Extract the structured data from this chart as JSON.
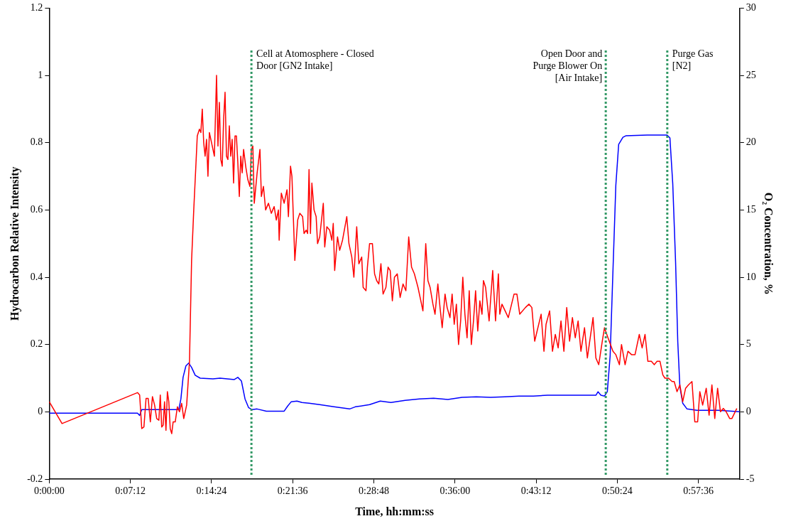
{
  "chart_data": {
    "type": "line",
    "xlabel": "Time, hh:mm:ss",
    "ylabel": "Hydrocarbon Relative Intensity",
    "y2label": "O₂ Concentration, %",
    "xlim": [
      0,
      1.0211
    ],
    "xticks": [
      {
        "value": 0,
        "label": "0:00:00"
      },
      {
        "value": 0.12,
        "label": "0:07:12"
      },
      {
        "value": 0.24,
        "label": "0:14:24"
      },
      {
        "value": 0.36,
        "label": "0:21:36"
      },
      {
        "value": 0.48,
        "label": "0:28:48"
      },
      {
        "value": 0.6,
        "label": "0:36:00"
      },
      {
        "value": 0.72,
        "label": "0:43:12"
      },
      {
        "value": 0.84,
        "label": "0:50:24"
      },
      {
        "value": 0.96,
        "label": "0:57:36"
      }
    ],
    "ylim": [
      -0.2,
      1.2
    ],
    "yticks": [
      -0.2,
      0,
      0.2,
      0.4,
      0.6,
      0.8,
      1,
      1.2
    ],
    "y2lim": [
      -5,
      30
    ],
    "y2ticks": [
      -5,
      0,
      5,
      10,
      15,
      20,
      25,
      30
    ],
    "grid": false,
    "legend": false,
    "marker": "none",
    "line_style": "solid",
    "ref_lines": [
      {
        "axis": "x",
        "value": 0.299,
        "label": "Cell at Atomosphere - Closed\nDoor [GN2 Intake]",
        "color": "#339966",
        "line_style": "dotted"
      },
      {
        "axis": "x",
        "value": 0.823,
        "label": "Open Door and\nPurge Blower On\n[Air Intake]",
        "color": "#339966",
        "line_style": "dotted"
      },
      {
        "axis": "x",
        "value": 0.914,
        "label": "Purge Gas\n[N2]",
        "color": "#339966",
        "line_style": "dotted"
      }
    ],
    "series": [
      {
        "color": "#ff0000",
        "x": [
          0,
          0.0189,
          0.1305,
          0.1337,
          0.1368,
          0.14,
          0.1432,
          0.1463,
          0.1495,
          0.1526,
          0.1558,
          0.1589,
          0.1621,
          0.1642,
          0.1663,
          0.1684,
          0.1705,
          0.1726,
          0.1747,
          0.1768,
          0.1789,
          0.1811,
          0.1832,
          0.1863,
          0.1895,
          0.1926,
          0.1958,
          0.1989,
          0.2032,
          0.2074,
          0.2105,
          0.2137,
          0.2168,
          0.2189,
          0.2221,
          0.2242,
          0.2263,
          0.2284,
          0.2305,
          0.2326,
          0.2347,
          0.2368,
          0.24,
          0.2442,
          0.2474,
          0.2495,
          0.2516,
          0.2537,
          0.2558,
          0.2579,
          0.26,
          0.2621,
          0.2642,
          0.2663,
          0.2684,
          0.2705,
          0.2726,
          0.2747,
          0.2768,
          0.2789,
          0.2811,
          0.2832,
          0.2853,
          0.2874,
          0.2905,
          0.2937,
          0.2968,
          0.2989,
          0.3011,
          0.3032,
          0.3074,
          0.3116,
          0.3137,
          0.3168,
          0.32,
          0.3242,
          0.3284,
          0.3326,
          0.3358,
          0.3389,
          0.34,
          0.3432,
          0.3474,
          0.3516,
          0.3537,
          0.3568,
          0.3589,
          0.3632,
          0.3674,
          0.3705,
          0.3747,
          0.3768,
          0.38,
          0.3821,
          0.3842,
          0.3863,
          0.3884,
          0.3916,
          0.3947,
          0.3968,
          0.4,
          0.4053,
          0.4074,
          0.4105,
          0.4147,
          0.4179,
          0.42,
          0.4221,
          0.4263,
          0.4295,
          0.4337,
          0.44,
          0.4432,
          0.4474,
          0.4505,
          0.4547,
          0.4579,
          0.4621,
          0.4642,
          0.4684,
          0.4705,
          0.4737,
          0.4779,
          0.4811,
          0.4842,
          0.4874,
          0.4905,
          0.4937,
          0.4979,
          0.5011,
          0.5042,
          0.5074,
          0.5105,
          0.5147,
          0.5189,
          0.5232,
          0.5274,
          0.5316,
          0.5358,
          0.54,
          0.5453,
          0.5495,
          0.5526,
          0.5568,
          0.56,
          0.5632,
          0.5674,
          0.5705,
          0.5747,
          0.5779,
          0.5811,
          0.5853,
          0.5884,
          0.5926,
          0.5958,
          0.5989,
          0.6021,
          0.6053,
          0.6084,
          0.6116,
          0.6147,
          0.6179,
          0.6211,
          0.6242,
          0.6274,
          0.6305,
          0.6337,
          0.6368,
          0.64,
          0.6421,
          0.6453,
          0.6505,
          0.6558,
          0.66,
          0.6642,
          0.6663,
          0.6695,
          0.6789,
          0.6874,
          0.6916,
          0.6958,
          0.7042,
          0.7095,
          0.7137,
          0.7179,
          0.7274,
          0.7316,
          0.7347,
          0.74,
          0.7442,
          0.7484,
          0.7526,
          0.7568,
          0.7611,
          0.7653,
          0.7695,
          0.7737,
          0.7779,
          0.7821,
          0.7863,
          0.7916,
          0.7958,
          0.8042,
          0.8084,
          0.8126,
          0.8179,
          0.8211,
          0.8263,
          0.8337,
          0.8379,
          0.8432,
          0.8463,
          0.8516,
          0.8558,
          0.8611,
          0.8663,
          0.8726,
          0.8768,
          0.8811,
          0.8853,
          0.8905,
          0.8947,
          0.8989,
          0.9032,
          0.9074,
          0.9105,
          0.9158,
          0.9211,
          0.9242,
          0.9284,
          0.9326,
          0.9368,
          0.9411,
          0.9453,
          0.9505,
          0.9547,
          0.9589,
          0.9621,
          0.9663,
          0.9716,
          0.9758,
          0.98,
          0.9842,
          0.9884,
          0.9926,
          0.9968,
          1.0011,
          1.0063,
          1.0095,
          1.0168
        ],
        "values": [
          0.03,
          -0.035,
          0.057,
          0.05,
          -0.05,
          -0.045,
          0.04,
          0.04,
          -0.03,
          0.045,
          0.02,
          -0.02,
          -0.025,
          0.05,
          -0.045,
          -0.04,
          0.03,
          -0.055,
          0.06,
          0.03,
          -0.05,
          -0.065,
          -0.03,
          -0.03,
          0.015,
          0,
          0.025,
          -0.02,
          0.02,
          0.15,
          0.45,
          0.6,
          0.73,
          0.82,
          0.84,
          0.83,
          0.9,
          0.8,
          0.76,
          0.81,
          0.7,
          0.83,
          0.8,
          0.76,
          1,
          0.79,
          0.92,
          0.75,
          0.73,
          0.87,
          0.95,
          0.76,
          0.75,
          0.85,
          0.76,
          0.81,
          0.68,
          0.82,
          0.82,
          0.74,
          0.64,
          0.76,
          0.71,
          0.78,
          0.73,
          0.69,
          0.67,
          0.78,
          0.79,
          0.62,
          0.71,
          0.78,
          0.64,
          0.67,
          0.6,
          0.62,
          0.59,
          0.61,
          0.57,
          0.6,
          0.51,
          0.65,
          0.62,
          0.66,
          0.58,
          0.73,
          0.7,
          0.45,
          0.57,
          0.59,
          0.58,
          0.53,
          0.54,
          0.53,
          0.72,
          0.53,
          0.68,
          0.6,
          0.58,
          0.5,
          0.52,
          0.62,
          0.49,
          0.55,
          0.54,
          0.51,
          0.56,
          0.42,
          0.52,
          0.48,
          0.51,
          0.58,
          0.5,
          0.46,
          0.4,
          0.55,
          0.44,
          0.46,
          0.37,
          0.36,
          0.43,
          0.5,
          0.5,
          0.41,
          0.39,
          0.38,
          0.44,
          0.35,
          0.37,
          0.43,
          0.42,
          0.33,
          0.4,
          0.41,
          0.34,
          0.38,
          0.36,
          0.52,
          0.43,
          0.41,
          0.37,
          0.33,
          0.3,
          0.5,
          0.39,
          0.37,
          0.32,
          0.29,
          0.38,
          0.31,
          0.25,
          0.35,
          0.31,
          0.28,
          0.35,
          0.26,
          0.32,
          0.2,
          0.27,
          0.4,
          0.29,
          0.22,
          0.36,
          0.2,
          0.27,
          0.36,
          0.24,
          0.33,
          0.29,
          0.39,
          0.37,
          0.27,
          0.42,
          0.27,
          0.41,
          0.29,
          0.32,
          0.28,
          0.35,
          0.35,
          0.29,
          0.31,
          0.32,
          0.31,
          0.21,
          0.29,
          0.18,
          0.26,
          0.3,
          0.18,
          0.23,
          0.19,
          0.27,
          0.18,
          0.31,
          0.21,
          0.28,
          0.22,
          0.27,
          0.18,
          0.25,
          0.16,
          0.28,
          0.16,
          0.14,
          0.21,
          0.25,
          0.22,
          0.18,
          0.17,
          0.14,
          0.2,
          0.14,
          0.18,
          0.17,
          0.17,
          0.23,
          0.19,
          0.23,
          0.15,
          0.15,
          0.14,
          0.15,
          0.15,
          0.11,
          0.1,
          0.1,
          0.09,
          0.09,
          0.06,
          0.08,
          0.03,
          0.07,
          0.08,
          0.09,
          -0.03,
          -0.03,
          0.06,
          0.02,
          0.07,
          -0.01,
          0.08,
          -0.02,
          0.07,
          0,
          0.01,
          0,
          -0.02,
          -0.02,
          0.01
        ]
      },
      {
        "color": "#0000ff",
        "axis": "y2",
        "x": [
          0,
          0.1305,
          0.1337,
          0.1368,
          0.1916,
          0.1947,
          0.1979,
          0.2021,
          0.2063,
          0.2105,
          0.2158,
          0.2232,
          0.2421,
          0.2526,
          0.2737,
          0.2789,
          0.2842,
          0.2895,
          0.2947,
          0.3,
          0.3074,
          0.3211,
          0.3474,
          0.3526,
          0.3579,
          0.3663,
          0.3737,
          0.3842,
          0.4,
          0.4211,
          0.4442,
          0.4526,
          0.4737,
          0.4895,
          0.5053,
          0.5263,
          0.5474,
          0.5684,
          0.5895,
          0.6105,
          0.6316,
          0.6526,
          0.6737,
          0.6947,
          0.7158,
          0.7368,
          0.7579,
          0.8084,
          0.8116,
          0.8158,
          0.8211,
          0.8253,
          0.8295,
          0.8337,
          0.8379,
          0.8421,
          0.8484,
          0.8526,
          0.8842,
          0.9137,
          0.9179,
          0.9221,
          0.9263,
          0.9295,
          0.9326,
          0.9368,
          0.9432,
          0.9579,
          0.9895,
          1.0211
        ],
        "values": [
          -0.1,
          -0.1,
          -0.27,
          0.16,
          0.16,
          0.96,
          2.56,
          3.41,
          3.62,
          3.3,
          2.72,
          2.5,
          2.45,
          2.5,
          2.4,
          2.56,
          2.29,
          0.96,
          0.32,
          0.16,
          0.21,
          0.05,
          0.05,
          0.43,
          0.75,
          0.8,
          0.69,
          0.64,
          0.53,
          0.37,
          0.21,
          0.37,
          0.53,
          0.8,
          0.69,
          0.85,
          0.96,
          1.01,
          0.91,
          1.07,
          1.12,
          1.07,
          1.12,
          1.17,
          1.17,
          1.23,
          1.23,
          1.23,
          1.49,
          1.23,
          1.17,
          1.49,
          4.15,
          10.55,
          16.83,
          19.87,
          20.4,
          20.51,
          20.56,
          20.56,
          20.35,
          16.94,
          11.08,
          5.22,
          1.86,
          0.64,
          0.21,
          0.11,
          0.11,
          0
        ]
      }
    ]
  }
}
